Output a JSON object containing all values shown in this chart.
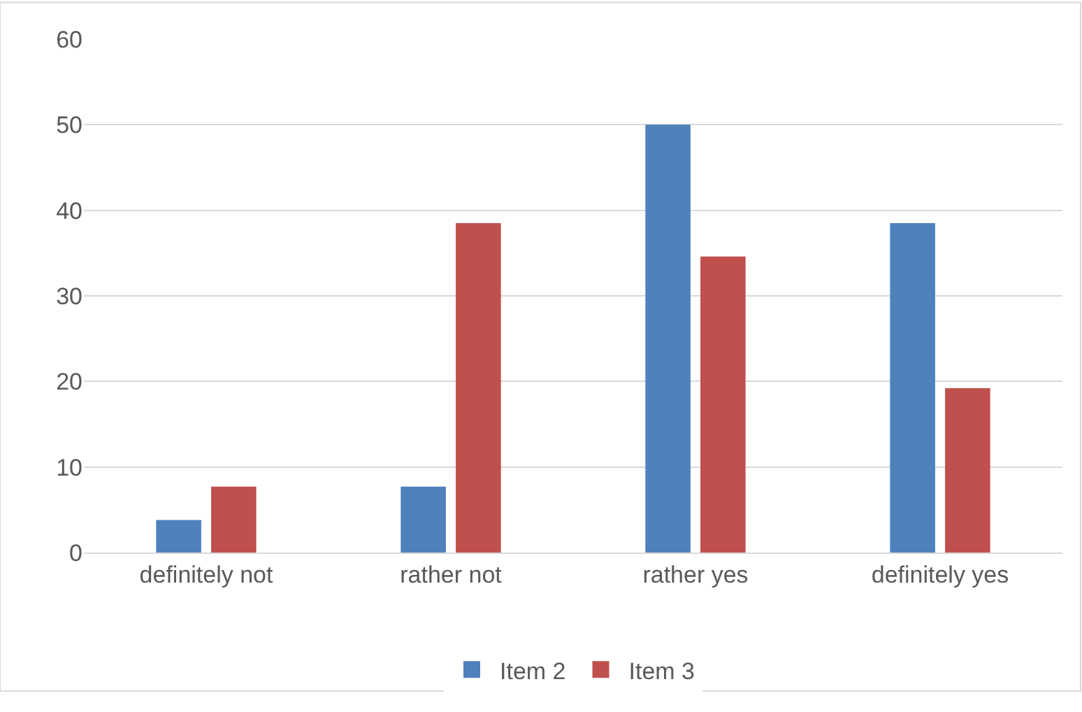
{
  "chart_data": {
    "type": "bar",
    "categories": [
      "definitely not",
      "rather not",
      "rather yes",
      "definitely yes"
    ],
    "series": [
      {
        "name": "Item 2",
        "color": "#4f81bd",
        "values": [
          3.8,
          7.7,
          50,
          38.5
        ]
      },
      {
        "name": "Item 3",
        "color": "#c0504d",
        "values": [
          7.7,
          38.5,
          34.6,
          19.2
        ]
      }
    ],
    "ylim": [
      0,
      60
    ],
    "yticks": [
      0,
      10,
      20,
      30,
      40,
      50,
      60
    ],
    "grid": "y",
    "legend": "bottom"
  }
}
